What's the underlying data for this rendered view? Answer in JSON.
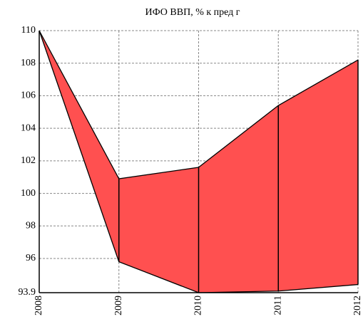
{
  "chart_data": {
    "type": "range-area",
    "title": "ИФО ВВП, % к пред г",
    "categories": [
      "2008",
      "2009",
      "2010",
      "2011",
      "2012"
    ],
    "series": [
      {
        "color": "#ff5050",
        "values": [
          110,
          100.9,
          101.6,
          105.4,
          108.2
        ]
      },
      {
        "color": "#ff5050",
        "values": [
          110,
          95.8,
          93.9,
          94.0,
          94.4
        ]
      }
    ],
    "ylim": [
      93.9,
      110
    ],
    "yticks": [
      {
        "value": 93.9,
        "label": "93.9"
      },
      96,
      98,
      100,
      102,
      104,
      106,
      108,
      110
    ],
    "grid": true
  }
}
